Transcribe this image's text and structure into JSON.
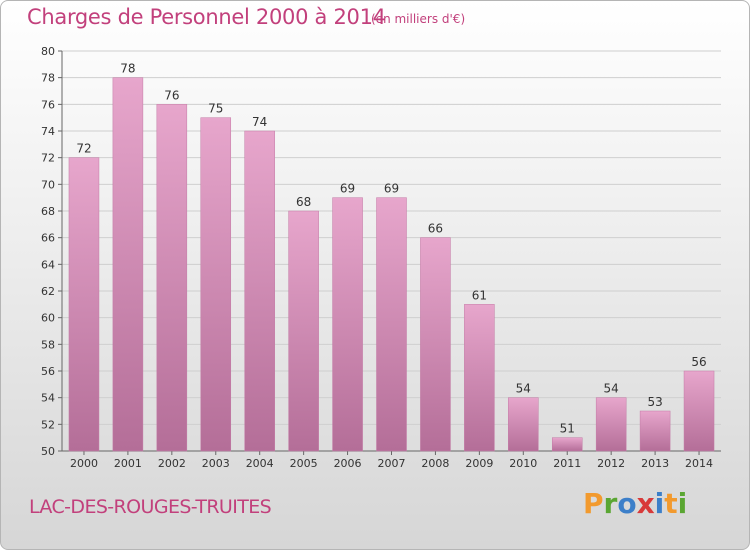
{
  "header": {
    "title": "Charges de Personnel 2000 à 2014",
    "subtitle": "(en milliers d'€)"
  },
  "footer": {
    "commune": "LAC-DES-ROUGES-TRUITES",
    "logo_letters": [
      "P",
      "r",
      "o",
      "x",
      "i",
      "t",
      "i"
    ],
    "logo_colors": [
      "#f29a2e",
      "#5aa632",
      "#3c7fc9",
      "#d83a3a",
      "#3c7fc9",
      "#f29a2e",
      "#5aa632"
    ]
  },
  "chart_data": {
    "type": "bar",
    "title": "Charges de Personnel 2000 à 2014",
    "subtitle": "(en milliers d'€)",
    "categories": [
      "2000",
      "2001",
      "2002",
      "2003",
      "2004",
      "2005",
      "2006",
      "2007",
      "2008",
      "2009",
      "2010",
      "2011",
      "2012",
      "2013",
      "2014"
    ],
    "values": [
      72,
      78,
      76,
      75,
      74,
      68,
      69,
      69,
      66,
      61,
      54,
      51,
      54,
      53,
      56
    ],
    "ylim": [
      50,
      80
    ],
    "yticks": [
      50,
      52,
      54,
      56,
      58,
      60,
      62,
      64,
      66,
      68,
      70,
      72,
      74,
      76,
      78,
      80
    ],
    "grid": true,
    "colors": {
      "bar_top": "#e7a6cc",
      "bar_bottom": "#b46e98",
      "bar_edge": "#c47aa6",
      "title": "#c2407c",
      "axis_text": "#333333",
      "grid": "#cfcfcf"
    }
  }
}
